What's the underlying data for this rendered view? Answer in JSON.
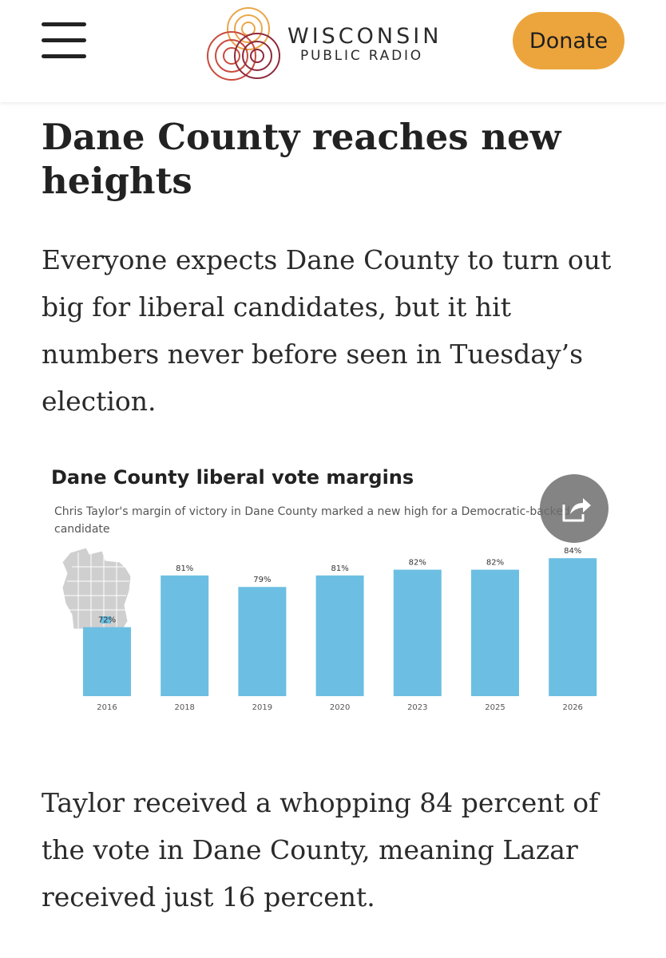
{
  "header": {
    "logo_line1": "WISCONSIN",
    "logo_line2": "PUBLIC RADIO",
    "donate_label": "Donate",
    "menu_icon": "hamburger-menu-icon"
  },
  "article": {
    "headline": "Dane County reaches new heights",
    "intro": "Everyone expects Dane County to turn out big for liberal candidates, but it hit numbers never before seen in Tuesday’s election.",
    "body": "Taylor received a whopping 84 percent of the vote in Dane County, meaning Lazar received just 16 percent."
  },
  "colors": {
    "donate": "#eca53d",
    "bar": "#6cbfe2",
    "map_fill": "#cfcfcf",
    "map_highlight": "#6cbfe2"
  },
  "share_icon": "share-icon",
  "chart_data": {
    "type": "bar",
    "title": "Dane County liberal vote margins",
    "subtitle": "Chris Taylor's margin of victory in Dane County marked a new high for a Democratic-backed candidate",
    "categories": [
      "2016",
      "2018",
      "2019",
      "2020",
      "2023",
      "2025",
      "2026"
    ],
    "values": [
      72,
      81,
      79,
      81,
      82,
      82,
      84
    ],
    "labels": [
      "72%",
      "81%",
      "79%",
      "81%",
      "82%",
      "82%",
      "84%"
    ],
    "ylim": [
      60,
      85
    ],
    "grid": false,
    "xlabel": "",
    "ylabel": ""
  }
}
